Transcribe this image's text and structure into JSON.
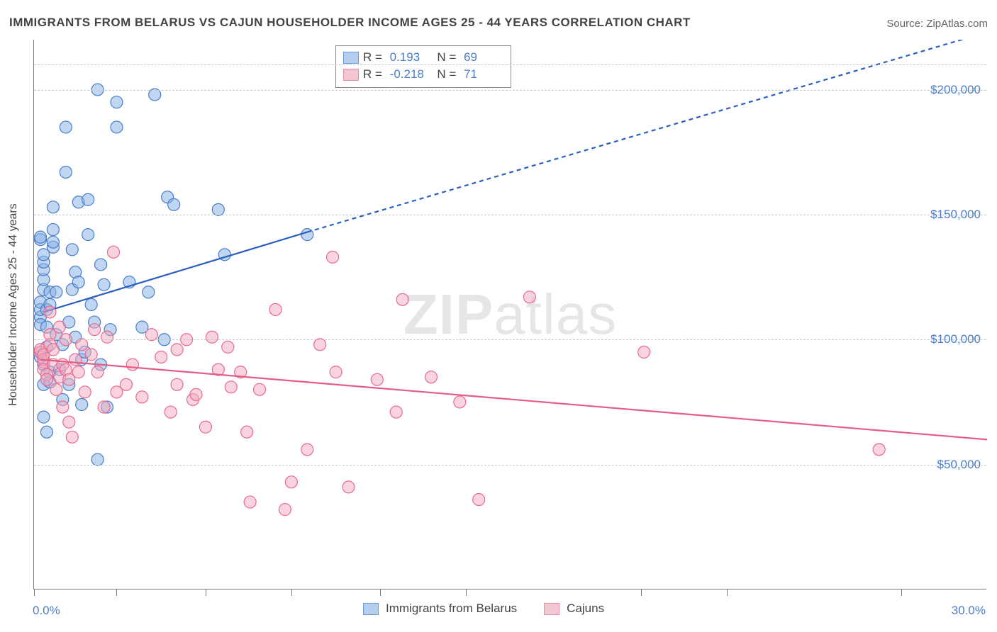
{
  "title": "IMMIGRANTS FROM BELARUS VS CAJUN HOUSEHOLDER INCOME AGES 25 - 44 YEARS CORRELATION CHART",
  "source_label": "Source: ",
  "source_value": "ZipAtlas.com",
  "watermark": {
    "a": "ZIP",
    "b": "atlas"
  },
  "yaxis_title": "Householder Income Ages 25 - 44 years",
  "chart": {
    "type": "scatter",
    "xlim": [
      0,
      30
    ],
    "ylim": [
      0,
      220000
    ],
    "x_unit": "%",
    "y_unit": "$",
    "xtick_positions": [
      0,
      2.6,
      5.4,
      8.1,
      10.9,
      13.6,
      19.1,
      21.8,
      27.3
    ],
    "xtick_labels": {
      "0": "0.0%",
      "30": "30.0%"
    },
    "ytick_positions": [
      50000,
      100000,
      150000,
      200000,
      210000
    ],
    "ytick_labels": {
      "50000": "$50,000",
      "100000": "$100,000",
      "150000": "$150,000",
      "200000": "$200,000"
    },
    "grid_color": "#c7c7c7",
    "axis_color": "#777777",
    "background_color": "#ffffff",
    "marker_radius": 8.5,
    "marker_stroke_width": 1.2,
    "trend_line_width": 2.2,
    "dash_pattern": "6,5",
    "series": [
      {
        "name": "Immigrants from Belarus",
        "swatch_fill": "#b6cfee",
        "swatch_stroke": "#6a9bdc",
        "marker_fill": "rgba(140,180,230,0.55)",
        "marker_stroke": "#4a7ec9",
        "trend_color": "#2b5fbf",
        "R": "0.193",
        "N": "69",
        "trend": {
          "x1": 0.3,
          "y1": 111000,
          "x2": 8.6,
          "y2": 143000,
          "dash_x1": 8.6,
          "dash_y1": 143000,
          "dash_x2": 30.0,
          "dash_y2": 223000
        },
        "points": [
          [
            0.2,
            93000
          ],
          [
            0.2,
            95000
          ],
          [
            0.2,
            109000
          ],
          [
            0.2,
            112000
          ],
          [
            0.2,
            115000
          ],
          [
            0.2,
            106000
          ],
          [
            0.2,
            140000
          ],
          [
            0.2,
            141000
          ],
          [
            0.3,
            69000
          ],
          [
            0.3,
            82000
          ],
          [
            0.3,
            90000
          ],
          [
            0.3,
            120000
          ],
          [
            0.3,
            124000
          ],
          [
            0.3,
            128000
          ],
          [
            0.3,
            131000
          ],
          [
            0.3,
            134000
          ],
          [
            0.4,
            97000
          ],
          [
            0.4,
            63000
          ],
          [
            0.4,
            105000
          ],
          [
            0.4,
            112000
          ],
          [
            0.5,
            114000
          ],
          [
            0.5,
            119000
          ],
          [
            0.5,
            83000
          ],
          [
            0.5,
            87000
          ],
          [
            0.6,
            137000
          ],
          [
            0.6,
            139000
          ],
          [
            0.6,
            144000
          ],
          [
            0.6,
            153000
          ],
          [
            0.7,
            102000
          ],
          [
            0.7,
            119000
          ],
          [
            0.8,
            88000
          ],
          [
            0.9,
            76000
          ],
          [
            0.9,
            98000
          ],
          [
            1.0,
            167000
          ],
          [
            1.0,
            185000
          ],
          [
            1.1,
            82000
          ],
          [
            1.1,
            107000
          ],
          [
            1.2,
            136000
          ],
          [
            1.2,
            120000
          ],
          [
            1.3,
            127000
          ],
          [
            1.3,
            101000
          ],
          [
            1.4,
            123000
          ],
          [
            1.4,
            155000
          ],
          [
            1.5,
            74000
          ],
          [
            1.5,
            92000
          ],
          [
            1.6,
            95000
          ],
          [
            1.7,
            142000
          ],
          [
            1.7,
            156000
          ],
          [
            1.8,
            114000
          ],
          [
            1.9,
            107000
          ],
          [
            2.0,
            52000
          ],
          [
            2.0,
            200000
          ],
          [
            2.1,
            90000
          ],
          [
            2.1,
            130000
          ],
          [
            2.2,
            122000
          ],
          [
            2.3,
            73000
          ],
          [
            2.4,
            104000
          ],
          [
            2.6,
            185000
          ],
          [
            2.6,
            195000
          ],
          [
            3.0,
            123000
          ],
          [
            3.4,
            105000
          ],
          [
            3.6,
            119000
          ],
          [
            3.8,
            198000
          ],
          [
            4.1,
            100000
          ],
          [
            4.2,
            157000
          ],
          [
            4.4,
            154000
          ],
          [
            5.8,
            152000
          ],
          [
            6.0,
            134000
          ],
          [
            8.6,
            142000
          ]
        ]
      },
      {
        "name": "Cajuns",
        "swatch_fill": "#f3c8d3",
        "swatch_stroke": "#e98aa6",
        "marker_fill": "rgba(243,170,190,0.5)",
        "marker_stroke": "#e76a90",
        "trend_color": "#e55d85",
        "R": "-0.218",
        "N": "71",
        "trend": {
          "x1": 0.2,
          "y1": 92000,
          "x2": 30.0,
          "y2": 60000
        },
        "points": [
          [
            0.2,
            95000
          ],
          [
            0.2,
            96000
          ],
          [
            0.3,
            91000
          ],
          [
            0.3,
            92000
          ],
          [
            0.3,
            94000
          ],
          [
            0.3,
            88000
          ],
          [
            0.4,
            86000
          ],
          [
            0.4,
            84000
          ],
          [
            0.5,
            102000
          ],
          [
            0.5,
            98000
          ],
          [
            0.5,
            111000
          ],
          [
            0.6,
            96000
          ],
          [
            0.6,
            90000
          ],
          [
            0.7,
            80000
          ],
          [
            0.8,
            85000
          ],
          [
            0.8,
            105000
          ],
          [
            0.9,
            90000
          ],
          [
            0.9,
            73000
          ],
          [
            1.0,
            88000
          ],
          [
            1.0,
            100000
          ],
          [
            1.1,
            84000
          ],
          [
            1.1,
            67000
          ],
          [
            1.2,
            61000
          ],
          [
            1.3,
            92000
          ],
          [
            1.4,
            87000
          ],
          [
            1.5,
            98000
          ],
          [
            1.6,
            79000
          ],
          [
            1.8,
            94000
          ],
          [
            1.9,
            104000
          ],
          [
            2.0,
            87000
          ],
          [
            2.2,
            73000
          ],
          [
            2.3,
            101000
          ],
          [
            2.5,
            135000
          ],
          [
            2.6,
            79000
          ],
          [
            2.9,
            82000
          ],
          [
            3.1,
            90000
          ],
          [
            3.4,
            77000
          ],
          [
            3.7,
            102000
          ],
          [
            4.0,
            93000
          ],
          [
            4.3,
            71000
          ],
          [
            4.5,
            96000
          ],
          [
            4.5,
            82000
          ],
          [
            4.8,
            100000
          ],
          [
            5.0,
            76000
          ],
          [
            5.1,
            78000
          ],
          [
            5.4,
            65000
          ],
          [
            5.6,
            101000
          ],
          [
            5.8,
            88000
          ],
          [
            6.1,
            97000
          ],
          [
            6.2,
            81000
          ],
          [
            6.5,
            87000
          ],
          [
            6.7,
            63000
          ],
          [
            6.8,
            35000
          ],
          [
            7.1,
            80000
          ],
          [
            7.6,
            112000
          ],
          [
            7.9,
            32000
          ],
          [
            8.1,
            43000
          ],
          [
            8.6,
            56000
          ],
          [
            9.0,
            98000
          ],
          [
            9.4,
            133000
          ],
          [
            9.5,
            87000
          ],
          [
            9.9,
            41000
          ],
          [
            10.8,
            84000
          ],
          [
            11.4,
            71000
          ],
          [
            11.6,
            116000
          ],
          [
            12.5,
            85000
          ],
          [
            13.4,
            75000
          ],
          [
            14.0,
            36000
          ],
          [
            15.6,
            117000
          ],
          [
            19.2,
            95000
          ],
          [
            26.6,
            56000
          ]
        ]
      }
    ]
  }
}
